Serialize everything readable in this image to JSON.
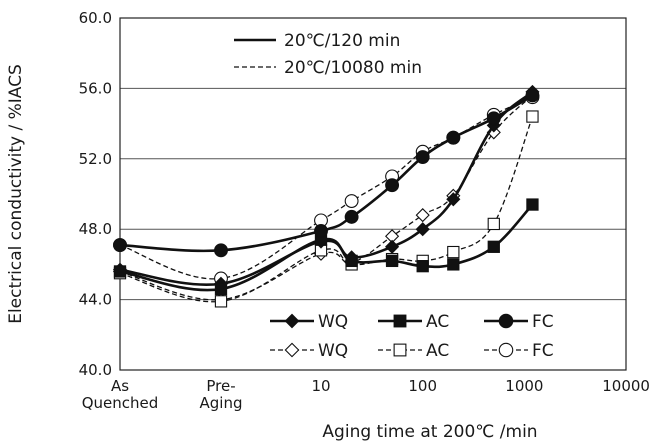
{
  "chart_data": {
    "type": "line",
    "xlabel": "Aging time at 200℃ /min",
    "ylabel": "Electrical conductivity / %IACS",
    "ylim": [
      40,
      60
    ],
    "y_ticks": [
      "40.0",
      "44.0",
      "48.0",
      "52.0",
      "56.0",
      "60.0"
    ],
    "x_scale": "categorical prefix followed by log scale",
    "x_categories": [
      {
        "key": "as_quenched",
        "lines": [
          "As",
          "Quenched"
        ]
      },
      {
        "key": "pre_aging",
        "lines": [
          "Pre-",
          "Aging"
        ]
      }
    ],
    "x_log_ticks": [
      "10",
      "100",
      "1000",
      "10000"
    ],
    "grid": "horizontal",
    "legend": {
      "top_left": [
        {
          "group": "120",
          "label": "20℃/120 min"
        },
        {
          "group": "10080",
          "label": "20℃/10080 min"
        }
      ],
      "bottom_right": [
        {
          "series": 0,
          "label": "WQ"
        },
        {
          "series": 1,
          "label": "AC"
        },
        {
          "series": 2,
          "label": "FC"
        },
        {
          "series": 3,
          "label": "WQ"
        },
        {
          "series": 4,
          "label": "AC"
        },
        {
          "series": 5,
          "label": "FC"
        }
      ]
    },
    "series": [
      {
        "group": "120",
        "marker": "diamond",
        "filled": true,
        "points": [
          [
            "as_quenched",
            45.7
          ],
          [
            "pre_aging",
            44.9
          ],
          [
            10,
            47.3
          ],
          [
            20,
            46.4
          ],
          [
            50,
            47.0
          ],
          [
            100,
            48.0
          ],
          [
            200,
            49.7
          ],
          [
            500,
            53.9
          ],
          [
            1200,
            55.8
          ]
        ]
      },
      {
        "group": "120",
        "marker": "square",
        "filled": true,
        "points": [
          [
            "as_quenched",
            45.6
          ],
          [
            "pre_aging",
            44.6
          ],
          [
            10,
            47.4
          ],
          [
            20,
            46.2
          ],
          [
            50,
            46.2
          ],
          [
            100,
            45.9
          ],
          [
            200,
            46.0
          ],
          [
            500,
            47.0
          ],
          [
            1200,
            49.4
          ]
        ]
      },
      {
        "group": "120",
        "marker": "circle",
        "filled": true,
        "points": [
          [
            "as_quenched",
            47.1
          ],
          [
            "pre_aging",
            46.8
          ],
          [
            10,
            47.9
          ],
          [
            20,
            48.7
          ],
          [
            50,
            50.5
          ],
          [
            100,
            52.1
          ],
          [
            200,
            53.2
          ],
          [
            500,
            54.3
          ],
          [
            1200,
            55.6
          ]
        ]
      },
      {
        "group": "10080",
        "marker": "diamond",
        "filled": false,
        "points": [
          [
            "as_quenched",
            45.6
          ],
          [
            "pre_aging",
            44.0
          ],
          [
            10,
            46.6
          ],
          [
            20,
            46.1
          ],
          [
            50,
            47.6
          ],
          [
            100,
            48.8
          ],
          [
            200,
            49.9
          ],
          [
            500,
            53.5
          ],
          [
            1200,
            55.6
          ]
        ]
      },
      {
        "group": "10080",
        "marker": "square",
        "filled": false,
        "points": [
          [
            "as_quenched",
            45.5
          ],
          [
            "pre_aging",
            43.9
          ],
          [
            10,
            46.8
          ],
          [
            20,
            46.0
          ],
          [
            50,
            46.3
          ],
          [
            100,
            46.2
          ],
          [
            200,
            46.7
          ],
          [
            500,
            48.3
          ],
          [
            1200,
            54.4
          ]
        ]
      },
      {
        "group": "10080",
        "marker": "circle",
        "filled": false,
        "points": [
          [
            "as_quenched",
            47.1
          ],
          [
            "pre_aging",
            45.2
          ],
          [
            10,
            48.5
          ],
          [
            20,
            49.6
          ],
          [
            50,
            51.0
          ],
          [
            100,
            52.4
          ],
          [
            200,
            53.2
          ],
          [
            500,
            54.5
          ],
          [
            1200,
            55.5
          ]
        ]
      }
    ]
  }
}
